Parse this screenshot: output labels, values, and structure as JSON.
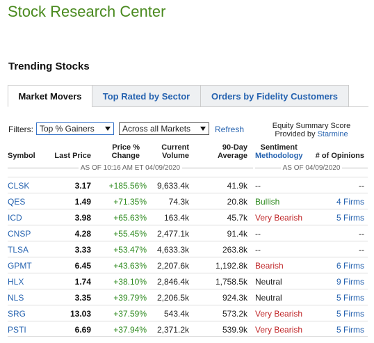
{
  "page_title": "Stock Research Center",
  "section_title": "Trending Stocks",
  "tabs": [
    {
      "label": "Market Movers",
      "active": true
    },
    {
      "label": "Top Rated by Sector",
      "active": false
    },
    {
      "label": "Orders by Fidelity Customers",
      "active": false
    }
  ],
  "filters": {
    "label": "Filters:",
    "type_select": "Top % Gainers",
    "market_select": "Across all Markets",
    "refresh": "Refresh"
  },
  "equity_summary": {
    "line1": "Equity Summary Score",
    "line2_prefix": "Provided by",
    "provider": "Starmine"
  },
  "columns": {
    "symbol": "Symbol",
    "last_price": "Last Price",
    "price_change_1": "Price %",
    "price_change_2": "Change",
    "volume_1": "Current",
    "volume_2": "Volume",
    "avg_1": "90-Day",
    "avg_2": "Average",
    "sentiment_1": "Sentiment",
    "sentiment_2": "Methodology",
    "opinions": "# of Opinions"
  },
  "as_of_left": "AS OF 10:16 AM ET 04/09/2020",
  "as_of_right": "AS OF 04/09/2020",
  "rows": [
    {
      "symbol": "CLSK",
      "price": "3.17",
      "change": "+185.56%",
      "volume": "9,633.4k",
      "avg": "41.9k",
      "sentiment": "--",
      "sentiment_type": "none",
      "opinions": "--"
    },
    {
      "symbol": "QES",
      "price": "1.49",
      "change": "+71.35%",
      "volume": "74.3k",
      "avg": "20.8k",
      "sentiment": "Bullish",
      "sentiment_type": "bullish",
      "opinions": "4 Firms"
    },
    {
      "symbol": "ICD",
      "price": "3.98",
      "change": "+65.63%",
      "volume": "163.4k",
      "avg": "45.7k",
      "sentiment": "Very Bearish",
      "sentiment_type": "bearish",
      "opinions": "5 Firms"
    },
    {
      "symbol": "CNSP",
      "price": "4.28",
      "change": "+55.45%",
      "volume": "2,477.1k",
      "avg": "91.4k",
      "sentiment": "--",
      "sentiment_type": "none",
      "opinions": "--"
    },
    {
      "symbol": "TLSA",
      "price": "3.33",
      "change": "+53.47%",
      "volume": "4,633.3k",
      "avg": "263.8k",
      "sentiment": "--",
      "sentiment_type": "none",
      "opinions": "--"
    },
    {
      "symbol": "GPMT",
      "price": "6.45",
      "change": "+43.63%",
      "volume": "2,207.6k",
      "avg": "1,192.8k",
      "sentiment": "Bearish",
      "sentiment_type": "bearish",
      "opinions": "6 Firms"
    },
    {
      "symbol": "HLX",
      "price": "1.74",
      "change": "+38.10%",
      "volume": "2,846.4k",
      "avg": "1,758.5k",
      "sentiment": "Neutral",
      "sentiment_type": "neutral",
      "opinions": "9 Firms"
    },
    {
      "symbol": "NLS",
      "price": "3.35",
      "change": "+39.79%",
      "volume": "2,206.5k",
      "avg": "924.3k",
      "sentiment": "Neutral",
      "sentiment_type": "neutral",
      "opinions": "5 Firms"
    },
    {
      "symbol": "SRG",
      "price": "13.03",
      "change": "+37.59%",
      "volume": "543.4k",
      "avg": "573.2k",
      "sentiment": "Very Bearish",
      "sentiment_type": "bearish",
      "opinions": "5 Firms"
    },
    {
      "symbol": "PSTI",
      "price": "6.69",
      "change": "+37.94%",
      "volume": "2,371.2k",
      "avg": "539.9k",
      "sentiment": "Very Bearish",
      "sentiment_type": "bearish",
      "opinions": "5 Firms"
    }
  ],
  "colors": {
    "brand_green": "#4a8a1f",
    "link_blue": "#2663b0",
    "gain_green": "#2d8a1e",
    "bearish_red": "#c0282a"
  }
}
